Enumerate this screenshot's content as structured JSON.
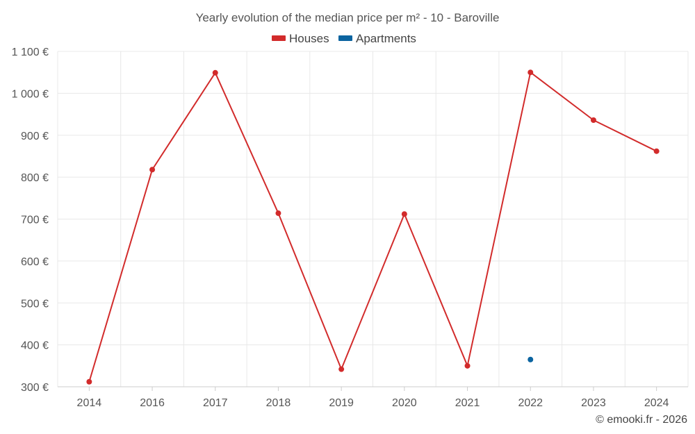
{
  "chart_data": {
    "type": "line",
    "title": "Yearly evolution of the median price per m² - 10 - Baroville",
    "categories": [
      "2014",
      "2016",
      "2017",
      "2018",
      "2019",
      "2020",
      "2021",
      "2022",
      "2023",
      "2024"
    ],
    "series": [
      {
        "name": "Houses",
        "color": "#d22b2b",
        "values": [
          312,
          818,
          1049,
          714,
          342,
          712,
          350,
          1050,
          936,
          862
        ]
      },
      {
        "name": "Apartments",
        "color": "#0b64a0",
        "values": [
          null,
          null,
          null,
          null,
          null,
          null,
          null,
          365,
          null,
          null
        ]
      }
    ],
    "ylim": [
      300,
      1100
    ],
    "yticks": [
      300,
      400,
      500,
      600,
      700,
      800,
      900,
      1000,
      1100
    ],
    "ytick_labels": [
      "300 €",
      "400 €",
      "500 €",
      "600 €",
      "700 €",
      "800 €",
      "900 €",
      "1 000 €",
      "1 100 €"
    ],
    "xlabel": "",
    "ylabel": "",
    "legend_position": "top-center",
    "grid": true
  },
  "credit": "© emooki.fr - 2026"
}
